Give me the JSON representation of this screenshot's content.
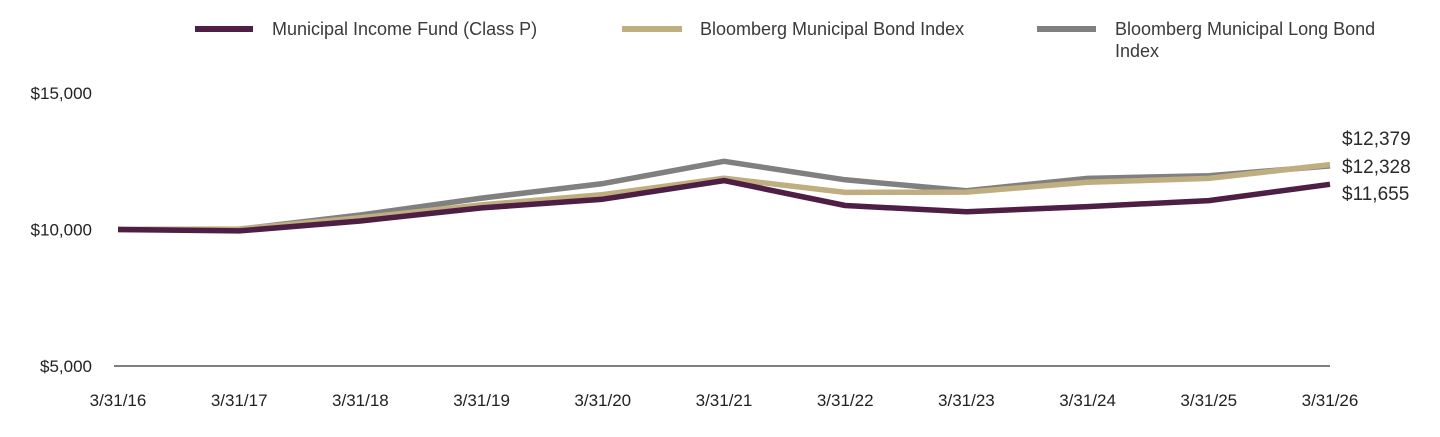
{
  "chart_data": {
    "type": "line",
    "title": "",
    "xlabel": "",
    "ylabel": "",
    "categories": [
      "3/31/16",
      "3/31/17",
      "3/31/18",
      "3/31/19",
      "3/31/20",
      "3/31/21",
      "3/31/22",
      "3/31/23",
      "3/31/24",
      "3/31/25",
      "3/31/26"
    ],
    "y_ticks": [
      "$5,000",
      "$10,000",
      "$15,000"
    ],
    "y_tick_values": [
      5000,
      10000,
      15000
    ],
    "ylim": [
      5000,
      15000
    ],
    "grid": false,
    "legend_position": "top",
    "series": [
      {
        "name": "Bloomberg Municipal Long Bond Index",
        "color": "#808080",
        "values": [
          10000,
          10010,
          10530,
          11150,
          11680,
          12500,
          11820,
          11420,
          11870,
          11970,
          12328
        ]
      },
      {
        "name": "Bloomberg Municipal Bond Index",
        "color": "#bfae80",
        "values": [
          10000,
          10020,
          10430,
          10900,
          11280,
          11880,
          11360,
          11370,
          11730,
          11870,
          12379
        ]
      },
      {
        "name": "Municipal Income Fund (Class P)",
        "color": "#4e1e44",
        "values": [
          10000,
          9950,
          10310,
          10790,
          11110,
          11790,
          10880,
          10650,
          10840,
          11060,
          11655
        ]
      }
    ],
    "legend_order": [
      2,
      1,
      0
    ],
    "end_labels": [
      "$12,379",
      "$12,328",
      "$11,655"
    ]
  }
}
